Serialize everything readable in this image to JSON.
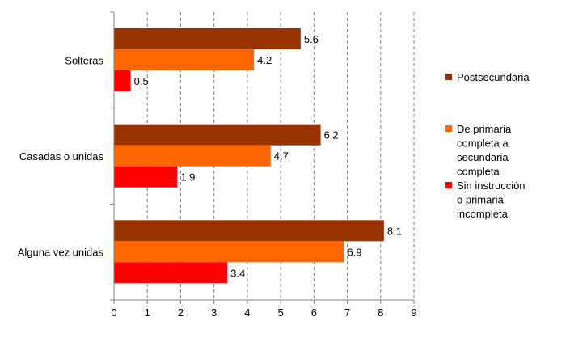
{
  "chart_data": {
    "type": "bar",
    "orientation": "horizontal",
    "categories": [
      "Solteras",
      "Casadas o unidas",
      "Alguna vez unidas"
    ],
    "series": [
      {
        "name": "Postsecundaria",
        "color": "#993300",
        "values": [
          5.6,
          6.2,
          8.1
        ]
      },
      {
        "name": "De primaria completa a secundaria completa",
        "color": "#ff6600",
        "values": [
          4.2,
          4.7,
          6.9
        ]
      },
      {
        "name": "Sin instrucción o primaria incompleta",
        "color": "#ff0000",
        "values": [
          0.5,
          1.9,
          3.4
        ]
      }
    ],
    "xlim": [
      0,
      9
    ],
    "xticks": [
      0,
      1,
      2,
      3,
      4,
      5,
      6,
      7,
      8,
      9
    ],
    "grid": "vertical-dashed",
    "legend_position": "right",
    "legend": [
      {
        "lines": [
          "Postsecundaria"
        ],
        "color": "#993300"
      },
      {
        "lines": [
          "De primaria",
          "completa a",
          "secundaria",
          "completa"
        ],
        "color": "#ff6600"
      },
      {
        "lines": [
          "Sin instrucción",
          "o primaria",
          "incompleta"
        ],
        "color": "#ff0000"
      }
    ]
  }
}
